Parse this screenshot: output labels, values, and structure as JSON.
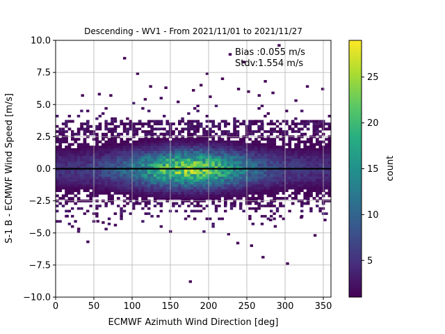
{
  "chart_data": {
    "type": "heatmap",
    "title": "Descending - WV1 - From 2021/11/01 to 2021/11/27",
    "xlabel": "ECMWF Azimuth Wind Direction [deg]",
    "ylabel": "S-1 B - ECMWF Wind Speed [m/s]",
    "xlim": [
      0,
      360
    ],
    "ylim": [
      -10,
      10
    ],
    "xticks": [
      0,
      50,
      100,
      150,
      200,
      250,
      300,
      350
    ],
    "yticks": [
      -10.0,
      -7.5,
      -5.0,
      -2.5,
      0.0,
      2.5,
      5.0,
      7.5,
      10.0
    ],
    "xtick_labels": [
      "0",
      "50",
      "100",
      "150",
      "200",
      "250",
      "300",
      "350"
    ],
    "ytick_labels": [
      "−10.0",
      "−7.5",
      "−5.0",
      "−2.5",
      "0.0",
      "2.5",
      "5.0",
      "7.5",
      "10.0"
    ],
    "grid": true,
    "colormap": "viridis",
    "colorbar": {
      "label": "count",
      "min": 1,
      "max": 29,
      "ticks": [
        5,
        10,
        15,
        20,
        25
      ],
      "tick_labels": [
        "5",
        "10",
        "15",
        "20",
        "25"
      ]
    },
    "reference_line": {
      "y": 0.0,
      "color": "#000000"
    },
    "annotations": {
      "bias": "Bias :0.055 m/s",
      "stdv": "Stdv:1.554 m/s"
    },
    "density_model": {
      "core_center_deg": 175,
      "core_spread_deg": 55,
      "core_y": 0.0,
      "core_y_spread": 1.0,
      "band_half_width": 2.6,
      "peak_count": 29
    },
    "outliers": [
      [
        90,
        8.6
      ],
      [
        228,
        8.9
      ],
      [
        292,
        9.6
      ],
      [
        246,
        8.3
      ],
      [
        107,
        7.4
      ],
      [
        198,
        7.4
      ],
      [
        35,
        5.7
      ],
      [
        57,
        5.8
      ],
      [
        72,
        5.7
      ],
      [
        124,
        6.4
      ],
      [
        144,
        6.3
      ],
      [
        180,
        6.1
      ],
      [
        190,
        6.5
      ],
      [
        218,
        7.0
      ],
      [
        239,
        6.2
      ],
      [
        252,
        6.0
      ],
      [
        274,
        6.8
      ],
      [
        284,
        5.9
      ],
      [
        329,
        6.4
      ],
      [
        349,
        6.2
      ],
      [
        117,
        5.4
      ],
      [
        160,
        5.2
      ],
      [
        202,
        5.6
      ],
      [
        266,
        5.7
      ],
      [
        314,
        5.3
      ],
      [
        15,
        -3.7
      ],
      [
        30,
        -4.7
      ],
      [
        42,
        -5.7
      ],
      [
        55,
        -4.1
      ],
      [
        62,
        -4.2
      ],
      [
        78,
        -4.4
      ],
      [
        150,
        -4.9
      ],
      [
        238,
        -5.8
      ],
      [
        226,
        -5.1
      ],
      [
        256,
        -6.0
      ],
      [
        271,
        -6.9
      ],
      [
        281,
        -4.0
      ],
      [
        287,
        -4.5
      ],
      [
        303,
        -7.4
      ],
      [
        176,
        -8.8
      ],
      [
        339,
        -5.2
      ],
      [
        352,
        -4.0
      ],
      [
        321,
        -3.8
      ]
    ]
  }
}
